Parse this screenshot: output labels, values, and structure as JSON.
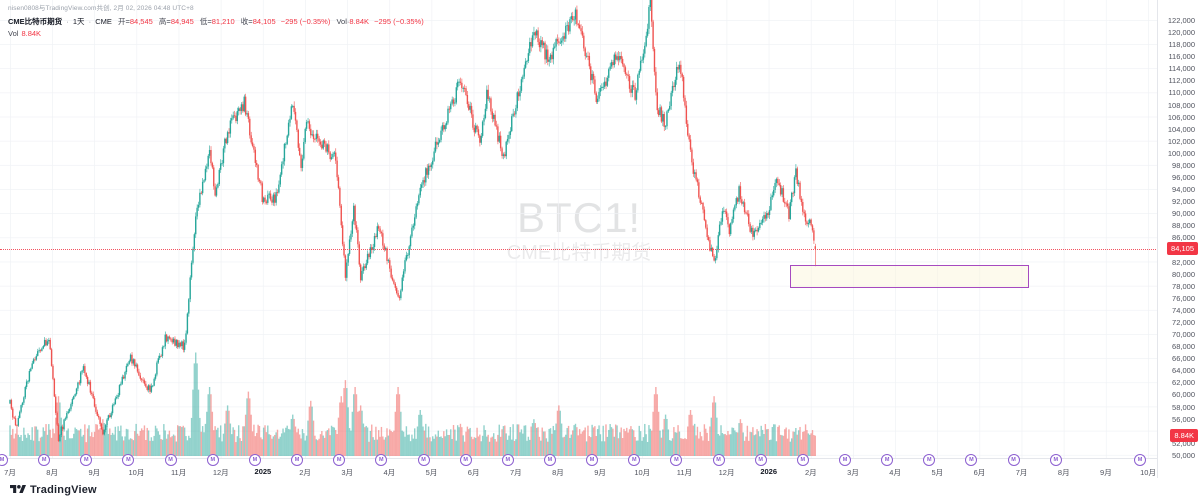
{
  "header": {
    "attribution": "nisen0808与TradingView.com共创, 2月 02, 2026 04:48 UTC+8",
    "symbol_title": "CME比特币期货",
    "sep": "·",
    "interval": "1天",
    "exchange": "CME",
    "ohlc": {
      "open_label": "开=",
      "open": "84,545",
      "high_label": "高=",
      "high": "84,945",
      "low_label": "低=",
      "low": "81,210",
      "close_label": "收=",
      "close": "84,105",
      "change": "−295 (−0.35%)",
      "vol_label": "Vol·",
      "vol": "8.84K",
      "change2": "−295 (−0.35%)"
    },
    "vol_row": {
      "label": "Vol",
      "value": "8.84K"
    }
  },
  "watermark": {
    "symbol": "BTC1!",
    "name": "CME比特币期货"
  },
  "price_axis": {
    "badge": "84,105",
    "vol_badge": "8.84K"
  },
  "footer": {
    "logo_text": "TradingView"
  },
  "timeline": {
    "icon_glyph": "M"
  },
  "colors": {
    "up": "#26a69a",
    "down": "#ef5350",
    "vol_up": "rgba(38,166,154,0.5)",
    "vol_down": "rgba(239,83,80,0.5)",
    "accent_red": "#f23645",
    "drawing_purple": "#a64ac0",
    "grid": "#f0f2f6"
  },
  "chart_data": {
    "type": "candlestick",
    "symbol": "BTC1!",
    "title": "CME比特币期货",
    "interval": "1天",
    "exchange": "CME",
    "legend_last": "开=84,545 高=84,945 低=81,210 收=84,105 −295 (−0.35%) Vol 8.84K",
    "y_axis": {
      "min": 49500,
      "max": 125300,
      "first_tick": 50000,
      "last_tick": 122000,
      "tick_step": 2000,
      "grid_step": 4000
    },
    "x_axis": {
      "start_date": "2024-07-01",
      "end_of_data": "2026-02-02",
      "labels": [
        "7月",
        "8月",
        "9月",
        "10月",
        "11月",
        "12月",
        "2025",
        "2月",
        "3月",
        "4月",
        "5月",
        "6月",
        "7月",
        "8月",
        "9月",
        "10月",
        "11月",
        "12月",
        "2026",
        "2月",
        "3月",
        "4月",
        "5月",
        "6月",
        "7月",
        "8月",
        "9月",
        "10月"
      ],
      "year_label_indices": [
        6,
        18
      ],
      "event_icon_months": [
        0,
        1,
        2,
        3,
        4,
        5,
        6,
        7,
        8,
        9,
        10,
        11,
        12,
        13,
        14,
        15,
        16,
        17,
        18,
        19,
        20,
        21,
        22,
        23,
        24,
        25,
        27
      ]
    },
    "last_bar": {
      "date": "2026-02-02",
      "open": 84545,
      "high": 84945,
      "low": 81210,
      "close": 84105,
      "volume_k": 8.84,
      "change": -295,
      "change_pct": -0.35
    },
    "price_line": 84105,
    "anchors": [
      [
        "2024-07-01",
        58500
      ],
      [
        "2024-07-05",
        54500
      ],
      [
        "2024-07-17",
        65500
      ],
      [
        "2024-07-29",
        69500
      ],
      [
        "2024-08-05",
        52800
      ],
      [
        "2024-08-23",
        64500
      ],
      [
        "2024-09-06",
        53800
      ],
      [
        "2024-09-26",
        66000
      ],
      [
        "2024-10-10",
        60500
      ],
      [
        "2024-10-21",
        69500
      ],
      [
        "2024-11-04",
        68000
      ],
      [
        "2024-11-12",
        90000
      ],
      [
        "2024-11-22",
        99800
      ],
      [
        "2024-11-26",
        93500
      ],
      [
        "2024-12-05",
        103500
      ],
      [
        "2024-12-17",
        108300
      ],
      [
        "2024-12-30",
        92800
      ],
      [
        "2025-01-09",
        92500
      ],
      [
        "2025-01-21",
        108500
      ],
      [
        "2025-01-27",
        98500
      ],
      [
        "2025-01-31",
        104500
      ],
      [
        "2025-02-21",
        99000
      ],
      [
        "2025-02-28",
        79500
      ],
      [
        "2025-03-06",
        91500
      ],
      [
        "2025-03-11",
        79000
      ],
      [
        "2025-03-24",
        88000
      ],
      [
        "2025-04-07",
        75500
      ],
      [
        "2025-04-22",
        93500
      ],
      [
        "2025-05-08",
        103500
      ],
      [
        "2025-05-22",
        111800
      ],
      [
        "2025-06-05",
        101500
      ],
      [
        "2025-06-10",
        110000
      ],
      [
        "2025-06-22",
        99200
      ],
      [
        "2025-07-03",
        110000
      ],
      [
        "2025-07-14",
        120000
      ],
      [
        "2025-07-25",
        115500
      ],
      [
        "2025-08-13",
        123500
      ],
      [
        "2025-08-29",
        108500
      ],
      [
        "2025-09-12",
        116300
      ],
      [
        "2025-09-25",
        109200
      ],
      [
        "2025-10-06",
        124600
      ],
      [
        "2025-10-11",
        107500
      ],
      [
        "2025-10-17",
        104800
      ],
      [
        "2025-10-27",
        115800
      ],
      [
        "2025-11-04",
        99500
      ],
      [
        "2025-11-21",
        81500
      ],
      [
        "2025-11-27",
        91000
      ],
      [
        "2025-12-02",
        86800
      ],
      [
        "2025-12-09",
        93500
      ],
      [
        "2025-12-18",
        86800
      ],
      [
        "2025-12-29",
        89500
      ],
      [
        "2026-01-06",
        95500
      ],
      [
        "2026-01-14",
        89800
      ],
      [
        "2026-01-19",
        97000
      ],
      [
        "2026-01-26",
        88500
      ],
      [
        "2026-01-30",
        88000
      ],
      [
        "2026-02-02",
        84105
      ]
    ],
    "volume_anchors_k": [
      [
        "2024-08-05",
        26
      ],
      [
        "2024-09-06",
        16
      ],
      [
        "2024-10-15",
        12
      ],
      [
        "2024-11-12",
        45
      ],
      [
        "2024-11-22",
        30
      ],
      [
        "2024-12-05",
        22
      ],
      [
        "2024-12-20",
        28
      ],
      [
        "2025-01-21",
        18
      ],
      [
        "2025-02-03",
        24
      ],
      [
        "2025-02-25",
        26
      ],
      [
        "2025-02-28",
        33
      ],
      [
        "2025-03-07",
        30
      ],
      [
        "2025-03-11",
        22
      ],
      [
        "2025-04-07",
        30
      ],
      [
        "2025-04-23",
        20
      ],
      [
        "2025-05-22",
        14
      ],
      [
        "2025-06-22",
        13
      ],
      [
        "2025-07-14",
        16
      ],
      [
        "2025-08-01",
        22
      ],
      [
        "2025-08-13",
        14
      ],
      [
        "2025-09-22",
        13
      ],
      [
        "2025-10-10",
        30
      ],
      [
        "2025-10-17",
        18
      ],
      [
        "2025-11-04",
        20
      ],
      [
        "2025-11-21",
        26
      ],
      [
        "2025-12-10",
        16
      ],
      [
        "2026-01-26",
        12
      ],
      [
        "2026-02-02",
        8.84
      ]
    ],
    "rectangle": {
      "x1_date": "2026-01-15",
      "x2_date": "2026-07-05",
      "price_top": 81500,
      "price_bottom": 77900
    }
  }
}
